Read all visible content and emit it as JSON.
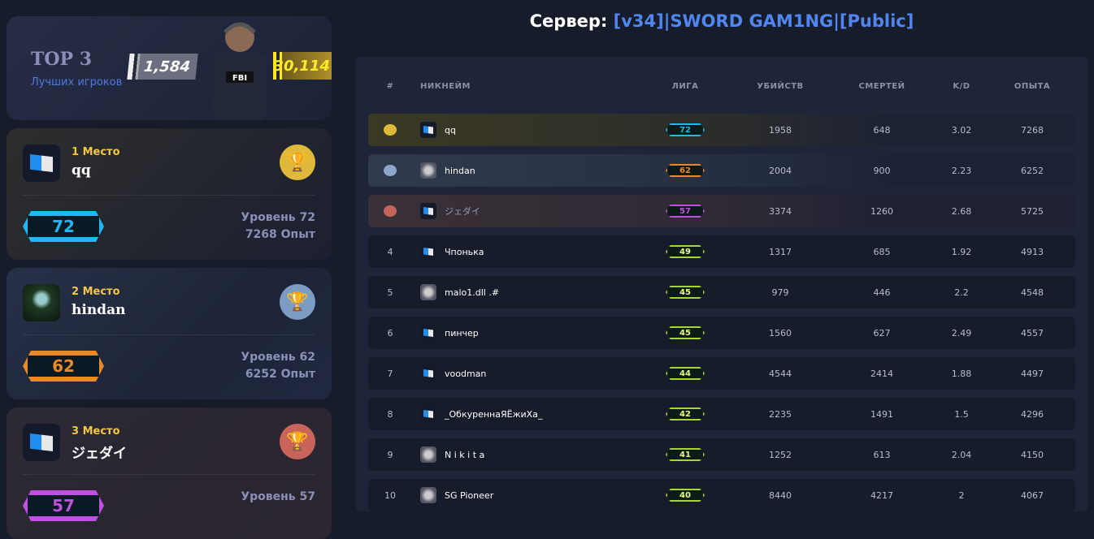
{
  "top": {
    "title": "TOP 3",
    "subtitle": "Лучших игроков",
    "stat_left": "1,584",
    "stat_right": "30,114"
  },
  "podium": [
    {
      "place": "1 Место",
      "name": "qq",
      "level": "72",
      "level_text": "Уровень 72",
      "xp_text": "7268 Опыт",
      "avatar": "sg-logo",
      "trophy": "gold-trophy",
      "color": "#1fb8f0"
    },
    {
      "place": "2 Место",
      "name": "hindan",
      "level": "62",
      "level_text": "Уровень 62",
      "xp_text": "6252 Опыт",
      "avatar": "photo",
      "trophy": "silver-trophy",
      "color": "#e88a2a"
    },
    {
      "place": "3 Место",
      "name": "ジェダイ",
      "level": "57",
      "level_text": "Уровень 57",
      "xp_text": "",
      "avatar": "sg-logo",
      "trophy": "bronze-trophy",
      "color": "#c050e0"
    }
  ],
  "server": {
    "label": "Сервер:",
    "name": "[v34]|SWORD GAM1NG|[Public]"
  },
  "table": {
    "headers": [
      "#",
      "НИКНЕЙМ",
      "ЛИГА",
      "УБИЙСТВ",
      "СМЕРТЕЙ",
      "K/D",
      "ОПЫТА"
    ],
    "rows": [
      {
        "rank": "",
        "name": "qq",
        "league": "72",
        "kills": "1958",
        "deaths": "648",
        "kd": "3.02",
        "xp": "7268",
        "avatar": "sg-logo",
        "league_color": "#1fb8f0"
      },
      {
        "rank": "",
        "name": "hindan",
        "league": "62",
        "kills": "2004",
        "deaths": "900",
        "kd": "2.23",
        "xp": "6252",
        "avatar": "photo",
        "league_color": "#e88a2a"
      },
      {
        "rank": "",
        "name": "ジェダイ",
        "league": "57",
        "kills": "3374",
        "deaths": "1260",
        "kd": "2.68",
        "xp": "5725",
        "avatar": "sg-logo",
        "league_color": "#c050e0"
      },
      {
        "rank": "4",
        "name": "Чпонька",
        "league": "49",
        "kills": "1317",
        "deaths": "685",
        "kd": "1.92",
        "xp": "4913",
        "avatar": "sg-logo",
        "league_color": "#a6d632"
      },
      {
        "rank": "5",
        "name": "malo1.dll .#",
        "league": "45",
        "kills": "979",
        "deaths": "446",
        "kd": "2.2",
        "xp": "4548",
        "avatar": "photo",
        "league_color": "#a6d632"
      },
      {
        "rank": "6",
        "name": "пинчер",
        "league": "45",
        "kills": "1560",
        "deaths": "627",
        "kd": "2.49",
        "xp": "4557",
        "avatar": "sg-logo",
        "league_color": "#a6d632"
      },
      {
        "rank": "7",
        "name": "voodman",
        "league": "44",
        "kills": "4544",
        "deaths": "2414",
        "kd": "1.88",
        "xp": "4497",
        "avatar": "sg-logo",
        "league_color": "#a6d632"
      },
      {
        "rank": "8",
        "name": "_ОбкуреннаЯЁжиХа_",
        "league": "42",
        "kills": "2235",
        "deaths": "1491",
        "kd": "1.5",
        "xp": "4296",
        "avatar": "sg-logo",
        "league_color": "#a6d632"
      },
      {
        "rank": "9",
        "name": "N i k i t a",
        "league": "41",
        "kills": "1252",
        "deaths": "613",
        "kd": "2.04",
        "xp": "4150",
        "avatar": "photo",
        "league_color": "#a6d632"
      },
      {
        "rank": "10",
        "name": "SG Pioneer",
        "league": "40",
        "kills": "8440",
        "deaths": "4217",
        "kd": "2",
        "xp": "4067",
        "avatar": "photo",
        "league_color": "#a6d632"
      }
    ]
  }
}
